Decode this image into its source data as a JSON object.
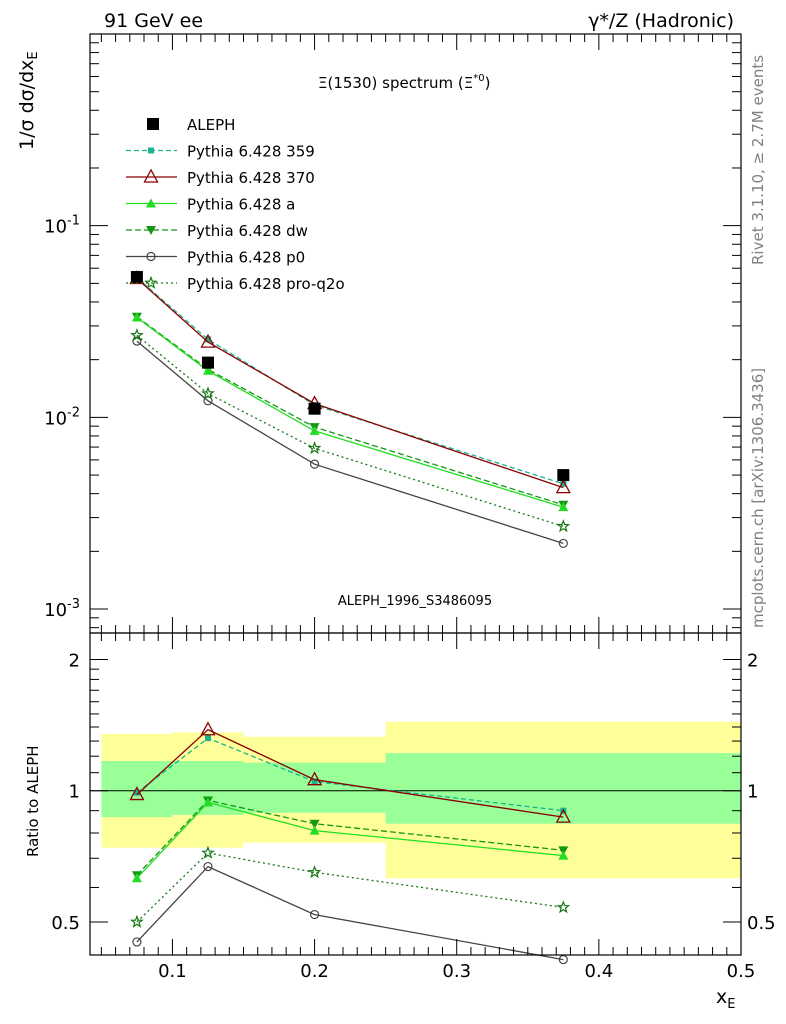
{
  "header": {
    "left": "91 GeV ee",
    "right_prefix": "γ*/Z (Hadronic)"
  },
  "side_labels": {
    "rivet": "Rivet 3.1.10, ≥ 2.7M events",
    "mcplots": "mcplots.cern.ch [arXiv:1306.3436]"
  },
  "watermark": "ALEPH_1996_S3486095",
  "chart_data": {
    "type": "line",
    "title": "Ξ(1530) spectrum (Ξ*0)",
    "xlabel": "x_E",
    "ylabel": "1/σ dσ/dx_E",
    "ratio_ylabel": "Ratio to ALEPH",
    "xlim": [
      0.042,
      0.5
    ],
    "ylim_main": [
      0.00075,
      1.0
    ],
    "ylim_ratio": [
      0.42,
      2.3
    ],
    "yscale_main": "log",
    "yscale_ratio": "log",
    "x_ticks": [
      "0.1",
      "0.2",
      "0.3",
      "0.4",
      "0.5"
    ],
    "main_y_ticks": [
      "10^-1",
      "10^-2",
      "10^-3"
    ],
    "ratio_y_ticks": [
      "2",
      "1",
      "0.5"
    ],
    "legend_position": "top-left",
    "data": {
      "name": "ALEPH",
      "x": [
        0.075,
        0.125,
        0.2,
        0.375
      ],
      "y": [
        0.054,
        0.0193,
        0.0111,
        0.005
      ],
      "bins": [
        [
          0.05,
          0.1
        ],
        [
          0.1,
          0.15
        ],
        [
          0.15,
          0.25
        ],
        [
          0.25,
          0.5
        ]
      ],
      "stat_ratio": [
        [
          0.87,
          1.17
        ],
        [
          0.88,
          1.17
        ],
        [
          0.89,
          1.16
        ],
        [
          0.84,
          1.22
        ]
      ],
      "total_ratio": [
        [
          0.74,
          1.35
        ],
        [
          0.74,
          1.36
        ],
        [
          0.76,
          1.33
        ],
        [
          0.63,
          1.44
        ]
      ]
    },
    "series": [
      {
        "name": "Pythia 6.428 359",
        "color": "#19b392",
        "dash": "5,3",
        "marker": "square-small",
        "y": [
          0.0535,
          0.0255,
          0.0116,
          0.0045
        ],
        "ratio": [
          0.99,
          1.32,
          1.05,
          0.9
        ]
      },
      {
        "name": "Pythia 6.428 370",
        "color": "#8b0000",
        "dash": "",
        "marker": "triangle-open",
        "y": [
          0.053,
          0.0247,
          0.0118,
          0.0043
        ],
        "ratio": [
          0.98,
          1.38,
          1.06,
          0.87
        ]
      },
      {
        "name": "Pythia 6.428 a",
        "color": "#22dd22",
        "dash": "",
        "marker": "triangle-up",
        "y": [
          0.0332,
          0.0175,
          0.0085,
          0.0034
        ],
        "ratio": [
          0.63,
          0.94,
          0.81,
          0.71
        ]
      },
      {
        "name": "Pythia 6.428 dw",
        "color": "#149814",
        "dash": "6,3",
        "marker": "triangle-down",
        "y": [
          0.0335,
          0.0178,
          0.0089,
          0.0035
        ],
        "ratio": [
          0.64,
          0.95,
          0.84,
          0.73
        ]
      },
      {
        "name": "Pythia 6.428 p0",
        "color": "#444444",
        "dash": "",
        "marker": "circle-open",
        "y": [
          0.025,
          0.0122,
          0.0057,
          0.0022
        ],
        "ratio": [
          0.45,
          0.67,
          0.52,
          0.41
        ]
      },
      {
        "name": "Pythia 6.428 pro-q2o",
        "color": "#147814",
        "dash": "2,3",
        "marker": "star",
        "y": [
          0.0268,
          0.0133,
          0.0069,
          0.0027
        ],
        "ratio": [
          0.5,
          0.72,
          0.65,
          0.54
        ]
      }
    ]
  }
}
